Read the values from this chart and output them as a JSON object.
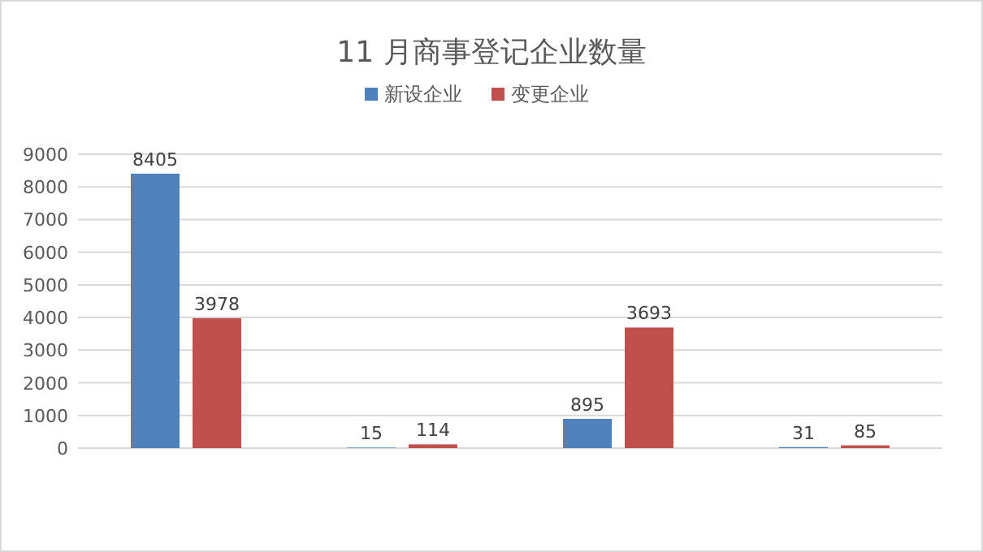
{
  "chart_data": {
    "type": "bar",
    "title": "11 月商事登记企业数量",
    "categories": [
      null,
      null,
      null,
      null
    ],
    "series": [
      {
        "name": "新设企业",
        "color": "#4f81bd",
        "values": [
          8405,
          15,
          895,
          31
        ]
      },
      {
        "name": "变更企业",
        "color": "#c0504d",
        "values": [
          3978,
          114,
          3693,
          85
        ]
      }
    ],
    "ylim": [
      0,
      9000
    ],
    "yticks": [
      0,
      1000,
      2000,
      3000,
      4000,
      5000,
      6000,
      7000,
      8000,
      9000
    ],
    "grid": "y",
    "legend": "top",
    "data_labels": true
  }
}
